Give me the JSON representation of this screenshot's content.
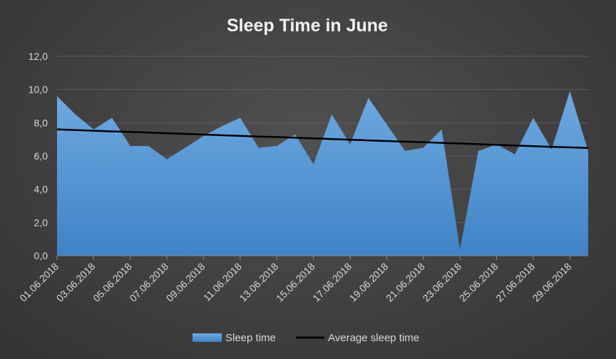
{
  "chart_data": {
    "type": "area",
    "title": "Sleep Time in June",
    "x": [
      "01.06.2018",
      "02.06.2018",
      "03.06.2018",
      "04.06.2018",
      "05.06.2018",
      "06.06.2018",
      "07.06.2018",
      "08.06.2018",
      "09.06.2018",
      "10.06.2018",
      "11.06.2018",
      "12.06.2018",
      "13.06.2018",
      "14.06.2018",
      "15.06.2018",
      "16.06.2018",
      "17.06.2018",
      "18.06.2018",
      "19.06.2018",
      "20.06.2018",
      "21.06.2018",
      "22.06.2018",
      "23.06.2018",
      "24.06.2018",
      "25.06.2018",
      "26.06.2018",
      "27.06.2018",
      "28.06.2018",
      "29.06.2018",
      "30.06.2018"
    ],
    "x_tick_labels": [
      "01.06.2018",
      "03.06.2018",
      "05.06.2018",
      "07.06.2018",
      "09.06.2018",
      "11.06.2018",
      "13.06.2018",
      "15.06.2018",
      "17.06.2018",
      "19.06.2018",
      "21.06.2018",
      "23.06.2018",
      "25.06.2018",
      "27.06.2018",
      "29.06.2018"
    ],
    "y_tick_labels": [
      "0,0",
      "2,0",
      "4,0",
      "6,0",
      "8,0",
      "10,0",
      "12,0"
    ],
    "ylim": [
      0,
      12
    ],
    "grid": true,
    "legend": "bottom",
    "series": [
      {
        "name": "Sleep time",
        "type": "area",
        "color": "#5b9bd5",
        "values": [
          9.6,
          8.5,
          7.6,
          8.3,
          6.6,
          6.6,
          5.8,
          6.5,
          7.2,
          7.8,
          8.3,
          6.5,
          6.6,
          7.3,
          5.5,
          8.5,
          6.7,
          9.5,
          7.9,
          6.3,
          6.5,
          7.6,
          0.4,
          6.3,
          6.7,
          6.1,
          8.3,
          6.4,
          9.9,
          6.3
        ]
      },
      {
        "name": "Average sleep time",
        "type": "line",
        "color": "#000000",
        "values": [
          7.6,
          7.56,
          7.52,
          7.48,
          7.45,
          7.41,
          7.37,
          7.33,
          7.29,
          7.25,
          7.21,
          7.17,
          7.14,
          7.1,
          7.06,
          7.02,
          6.98,
          6.94,
          6.9,
          6.86,
          6.83,
          6.79,
          6.75,
          6.71,
          6.67,
          6.63,
          6.59,
          6.55,
          6.52,
          6.48
        ]
      }
    ]
  }
}
